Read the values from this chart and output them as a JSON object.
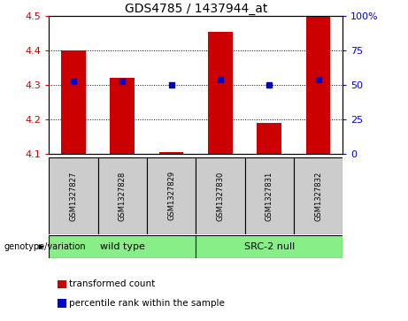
{
  "title": "GDS4785 / 1437944_at",
  "samples": [
    "GSM1327827",
    "GSM1327828",
    "GSM1327829",
    "GSM1327830",
    "GSM1327831",
    "GSM1327832"
  ],
  "bar_values": [
    4.4,
    4.32,
    4.107,
    4.455,
    4.19,
    4.5
  ],
  "bar_base": 4.1,
  "percentile_values": [
    4.312,
    4.31,
    4.3,
    4.315,
    4.3,
    4.315
  ],
  "ylim_left": [
    4.1,
    4.5
  ],
  "ylim_right": [
    0,
    100
  ],
  "yticks_left": [
    4.1,
    4.2,
    4.3,
    4.4,
    4.5
  ],
  "yticks_right": [
    0,
    25,
    50,
    75,
    100
  ],
  "ytick_labels_right": [
    "0",
    "25",
    "50",
    "75",
    "100%"
  ],
  "bar_color": "#cc0000",
  "percentile_color": "#0000cc",
  "left_tick_color": "#cc0000",
  "right_tick_color": "#0000cc",
  "group1_label": "wild type",
  "group2_label": "SRC-2 null",
  "group_color": "#88ee88",
  "sample_box_color": "#cccccc",
  "genotype_label": "genotype/variation",
  "legend_red_label": "transformed count",
  "legend_blue_label": "percentile rank within the sample",
  "background_color": "#ffffff"
}
